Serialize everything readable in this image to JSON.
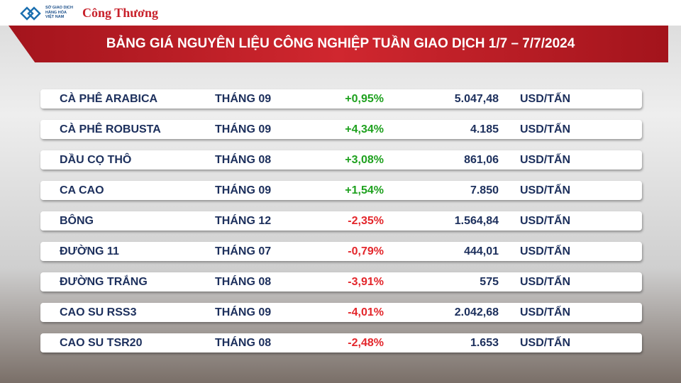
{
  "header": {
    "logo_lines": [
      "SỞ GIAO DỊCH",
      "HÀNG HÓA",
      "VIỆT NAM"
    ],
    "brand": "Công Thương",
    "title": "BẢNG GIÁ NGUYÊN LIỆU CÔNG NGHIỆP TUẦN GIAO DỊCH 1/7 – 7/7/2024"
  },
  "table": {
    "rows": [
      [
        "CÀ PHÊ ARABICA",
        "THÁNG 09",
        "+0,95%",
        "5.047,48",
        "USD/TẤN"
      ],
      [
        "CÀ PHÊ ROBUSTA",
        "THÁNG 09",
        "+4,34%",
        "4.185",
        "USD/TẤN"
      ],
      [
        "DẦU CỌ THÔ",
        "THÁNG 08",
        "+3,08%",
        "861,06",
        "USD/TẤN"
      ],
      [
        "CA CAO",
        "THÁNG 09",
        "+1,54%",
        "7.850",
        "USD/TẤN"
      ],
      [
        "BÔNG",
        "THÁNG 12",
        "-2,35%",
        "1.564,84",
        "USD/TẤN"
      ],
      [
        "ĐƯỜNG 11",
        "THÁNG 07",
        "-0,79%",
        "444,01",
        "USD/TẤN"
      ],
      [
        "ĐƯỜNG TRẮNG",
        "THÁNG 08",
        "-3,91%",
        "575",
        "USD/TẤN"
      ],
      [
        "CAO SU RSS3",
        "THÁNG 09",
        "-4,01%",
        "2.042,68",
        "USD/TẤN"
      ],
      [
        "CAO SU TSR20",
        "THÁNG 08",
        "-2,48%",
        "1.653",
        "USD/TẤN"
      ]
    ]
  }
}
